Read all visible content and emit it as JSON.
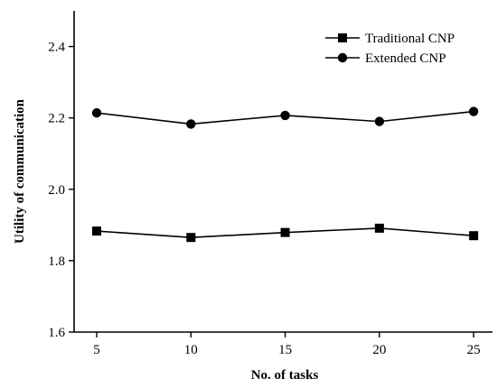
{
  "chart_data": {
    "type": "line",
    "title": "",
    "xlabel": "No. of tasks",
    "ylabel": "Utility of communication",
    "x": [
      5,
      10,
      15,
      20,
      25
    ],
    "x_ticks": [
      "5",
      "10",
      "15",
      "20",
      "25"
    ],
    "y_ticks": [
      "1.6",
      "1.8",
      "2.0",
      "2.2",
      "2.4"
    ],
    "xlim": [
      3.8,
      26
    ],
    "ylim": [
      1.6,
      2.5
    ],
    "grid": false,
    "legend_position": "top-right",
    "series": [
      {
        "name": "Traditional CNP",
        "marker": "square",
        "color": "#000000",
        "values": [
          1.883,
          1.865,
          1.879,
          1.891,
          1.87
        ]
      },
      {
        "name": "Extended CNP",
        "marker": "circle",
        "color": "#000000",
        "values": [
          2.214,
          2.183,
          2.207,
          2.19,
          2.218
        ]
      }
    ]
  }
}
